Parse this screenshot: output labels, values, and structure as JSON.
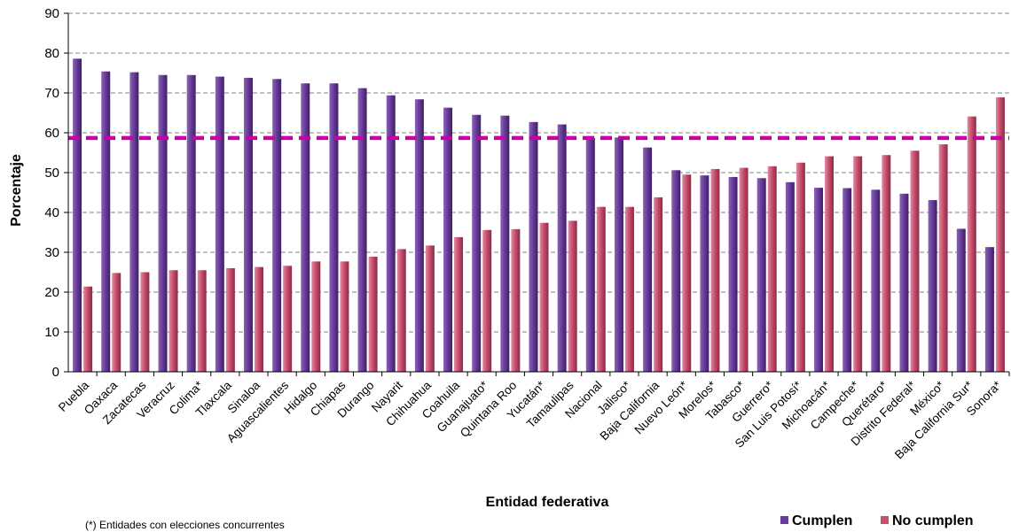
{
  "chart_data": {
    "type": "bar",
    "xlabel": "Entidad federativa",
    "ylabel": "Porcentaje",
    "ylim": [
      0,
      90
    ],
    "yticks": [
      0,
      10,
      20,
      30,
      40,
      50,
      60,
      70,
      80,
      90
    ],
    "grid": true,
    "legend_position": "bottom-right",
    "categories": [
      "Puebla",
      "Oaxaca",
      "Zacatecas",
      "Veracruz",
      "Colima*",
      "Tlaxcala",
      "Sinaloa",
      "Aguascalientes",
      "Hidalgo",
      "Chiapas",
      "Durango",
      "Nayarit",
      "Chihuahua",
      "Coahuila",
      "Guanajuato*",
      "Quintana Roo",
      "Yucatán*",
      "Tamaulipas",
      "Nacional",
      "Jalisco*",
      "Baja California",
      "Nuevo León*",
      "Morelos*",
      "Tabasco*",
      "Guerrero*",
      "San Luis Potosí*",
      "Michoacán*",
      "Campeche*",
      "Querétaro*",
      "Distrito Federal*",
      "México*",
      "Baja California Sur*",
      "Sonora*"
    ],
    "series": [
      {
        "name": "Cumplen",
        "color": "#6a3d9a",
        "values": [
          78.6,
          75.4,
          75.2,
          74.5,
          74.5,
          74.1,
          73.8,
          73.5,
          72.4,
          72.4,
          71.2,
          69.4,
          68.4,
          66.3,
          64.5,
          64.3,
          62.7,
          62.1,
          58.7,
          58.8,
          56.3,
          50.6,
          49.3,
          48.9,
          48.6,
          47.6,
          46.2,
          46.1,
          45.7,
          44.7,
          43.1,
          35.9,
          31.3
        ]
      },
      {
        "name": "No cumplen",
        "color": "#c8506e",
        "values": [
          21.4,
          24.8,
          25.0,
          25.5,
          25.5,
          26.0,
          26.3,
          26.6,
          27.7,
          27.7,
          28.9,
          30.8,
          31.7,
          33.8,
          35.6,
          35.8,
          37.4,
          37.9,
          41.4,
          41.4,
          43.8,
          49.5,
          50.9,
          51.2,
          51.6,
          52.5,
          54.1,
          54.1,
          54.4,
          55.5,
          57.1,
          64.1,
          68.9
        ]
      }
    ],
    "reference_line": {
      "value": 58.7,
      "color": "#cc00aa",
      "style": "dashed"
    }
  },
  "footnote": "(*) Entidades con elecciones concurrentes"
}
